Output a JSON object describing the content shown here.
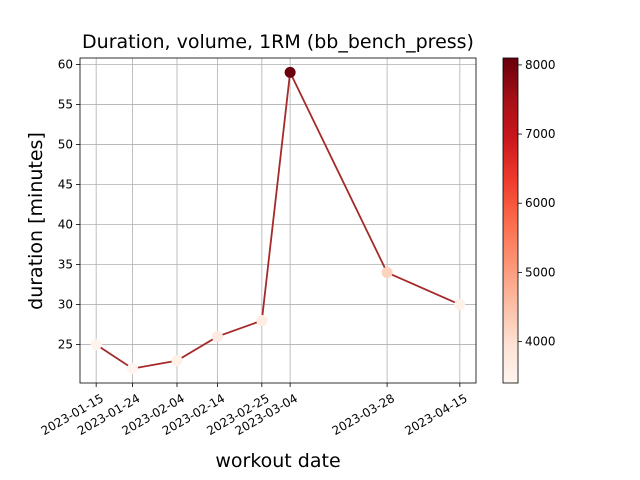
{
  "chart_data": {
    "type": "scatter",
    "title": "Duration, volume, 1RM (bb_bench_press)",
    "xlabel": "workout date",
    "ylabel": "duration [minutes]",
    "x": [
      "2023-01-15",
      "2023-01-24",
      "2023-02-04",
      "2023-02-14",
      "2023-02-25",
      "2023-03-04",
      "2023-03-28",
      "2023-04-15"
    ],
    "y": [
      25,
      22,
      23,
      26,
      28,
      59,
      34,
      30
    ],
    "color_values": [
      3450,
      3400,
      3550,
      3700,
      3650,
      8050,
      4200,
      3550
    ],
    "x_ticks": [
      "2023-01-15",
      "2023-01-24",
      "2023-02-04",
      "2023-02-14",
      "2023-02-25",
      "2023-03-04",
      "2023-03-28",
      "2023-04-15"
    ],
    "y_ticks": [
      "25",
      "30",
      "35",
      "40",
      "45",
      "50",
      "55",
      "60"
    ],
    "ylim": [
      20.2,
      60.8
    ],
    "xlim": [
      "2023-01-11",
      "2023-04-19"
    ],
    "grid": true,
    "line_color": "#a52a2a",
    "colorbar": {
      "colormap": "Reds",
      "range": [
        3400,
        8100
      ],
      "ticks": [
        "4000",
        "5000",
        "6000",
        "7000",
        "8000"
      ],
      "stops": [
        "#fff5f0",
        "#fee0d2",
        "#fcbba1",
        "#fc9272",
        "#fb6a4a",
        "#ef3b2c",
        "#cb181d",
        "#a50f15",
        "#67000d"
      ]
    }
  }
}
